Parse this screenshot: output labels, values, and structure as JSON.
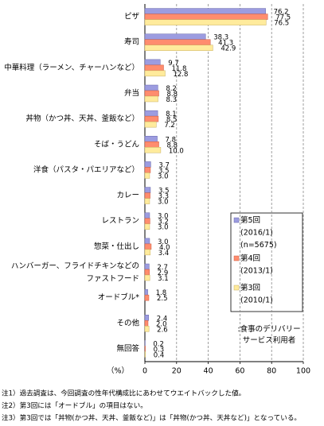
{
  "chart_data": {
    "type": "bar",
    "orientation": "horizontal",
    "categories": [
      "ピザ",
      "寿司",
      "中華料理（ラーメン、チャーハンなど）",
      "弁当",
      "丼物（かつ丼、天丼、釜飯など）",
      "そば・うどん",
      "洋食（パスタ・パエリアなど）",
      "カレー",
      "レストラン",
      "惣菜・仕出し",
      "ハンバーガー、フライドチキンなどの\nファストフード",
      "オードブル*",
      "その他",
      "無回答"
    ],
    "series": [
      {
        "name": "第5回\n(2016/1)\n(n=5675)",
        "color": "#9c9ce0",
        "stroke": "#6666aa",
        "values": [
          76.2,
          38.3,
          9.7,
          8.2,
          8.1,
          7.8,
          3.7,
          3.5,
          3.0,
          3.0,
          2.7,
          1.8,
          2.4,
          0.2
        ],
        "value_labels": [
          "76.2",
          "38.3",
          "9.7",
          "8.2",
          "8.1",
          "7.8",
          "3.7",
          "3.5",
          "3.0",
          "3.0",
          "2.7",
          "1.8",
          "2.4",
          "0.2"
        ]
      },
      {
        "name": "第4回\n(2013/1)",
        "color": "#ff8c6e",
        "stroke": "#cc5a40",
        "values": [
          77.5,
          41.3,
          11.8,
          8.8,
          8.5,
          8.8,
          3.5,
          3.3,
          3.2,
          4.0,
          2.9,
          2.5,
          2.0,
          0.3
        ],
        "value_labels": [
          "77.5",
          "41.3",
          "11.8",
          "8.8",
          "8.5",
          "8.8",
          "3.5",
          "3.3",
          "3.2",
          "4.0",
          "2.9",
          "2.5",
          "2.0",
          "0.3"
        ]
      },
      {
        "name": "第3回\n(2010/1)",
        "color": "#ffeb9c",
        "stroke": "#c8b060",
        "values": [
          76.5,
          42.9,
          12.8,
          8.3,
          7.2,
          10.0,
          3.0,
          3.0,
          3.0,
          3.4,
          3.1,
          null,
          2.6,
          0.4
        ],
        "value_labels": [
          "76.5",
          "42.9",
          "12.8",
          "8.3",
          "7.2",
          "10.0",
          "3.0",
          "3.0",
          "3.0",
          "3.4",
          "3.1",
          null,
          "2.6",
          "0.4"
        ]
      }
    ],
    "xlim": [
      0,
      100
    ],
    "xticks": [
      0,
      20,
      40,
      60,
      80,
      100
    ],
    "grid": true,
    "x_label": "（%）",
    "annotation": ":食事のデリバリー\nサービス利用者",
    "notes": [
      "注1）過去調査は、今回調査の性年代構成比にあわせてウエイトバックした値。",
      "注2）第3回には「オードブル」の項目はない。",
      "注3）第3回では「丼物(かつ丼、天丼、釜飯など)」は「丼物(かつ丼、天丼など)」となっている。"
    ]
  }
}
